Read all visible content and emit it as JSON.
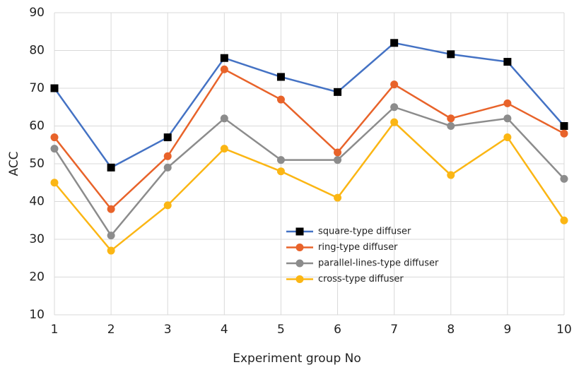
{
  "chart_data": {
    "type": "line",
    "xlabel": "Experiment group No",
    "ylabel": "ACC",
    "x": [
      1,
      2,
      3,
      4,
      5,
      6,
      7,
      8,
      9,
      10
    ],
    "xlim": [
      1,
      10
    ],
    "xticks": [
      1,
      2,
      3,
      4,
      5,
      6,
      7,
      8,
      9,
      10
    ],
    "ylim": [
      10,
      90
    ],
    "yticks": [
      10,
      20,
      30,
      40,
      50,
      60,
      70,
      80,
      90
    ],
    "grid": true,
    "legend": "lower-center",
    "series": [
      {
        "name": "square-type diffuser",
        "color": "#4472c4",
        "marker": "square",
        "marker_color": "#000000",
        "values": [
          70,
          49,
          57,
          78,
          73,
          69,
          82,
          79,
          77,
          60
        ]
      },
      {
        "name": "ring-type diffuser",
        "color": "#e8632a",
        "marker": "circle",
        "marker_color": "#e8632a",
        "values": [
          57,
          38,
          52,
          75,
          67,
          53,
          71,
          62,
          66,
          58
        ]
      },
      {
        "name": "parallel-lines-type diffuser",
        "color": "#8c8c8c",
        "marker": "circle",
        "marker_color": "#8c8c8c",
        "values": [
          54,
          31,
          49,
          62,
          51,
          51,
          65,
          60,
          62,
          46
        ]
      },
      {
        "name": "cross-type diffuser",
        "color": "#fbb614",
        "marker": "circle",
        "marker_color": "#fbb614",
        "values": [
          45,
          27,
          39,
          54,
          48,
          41,
          61,
          47,
          57,
          35
        ]
      }
    ]
  }
}
